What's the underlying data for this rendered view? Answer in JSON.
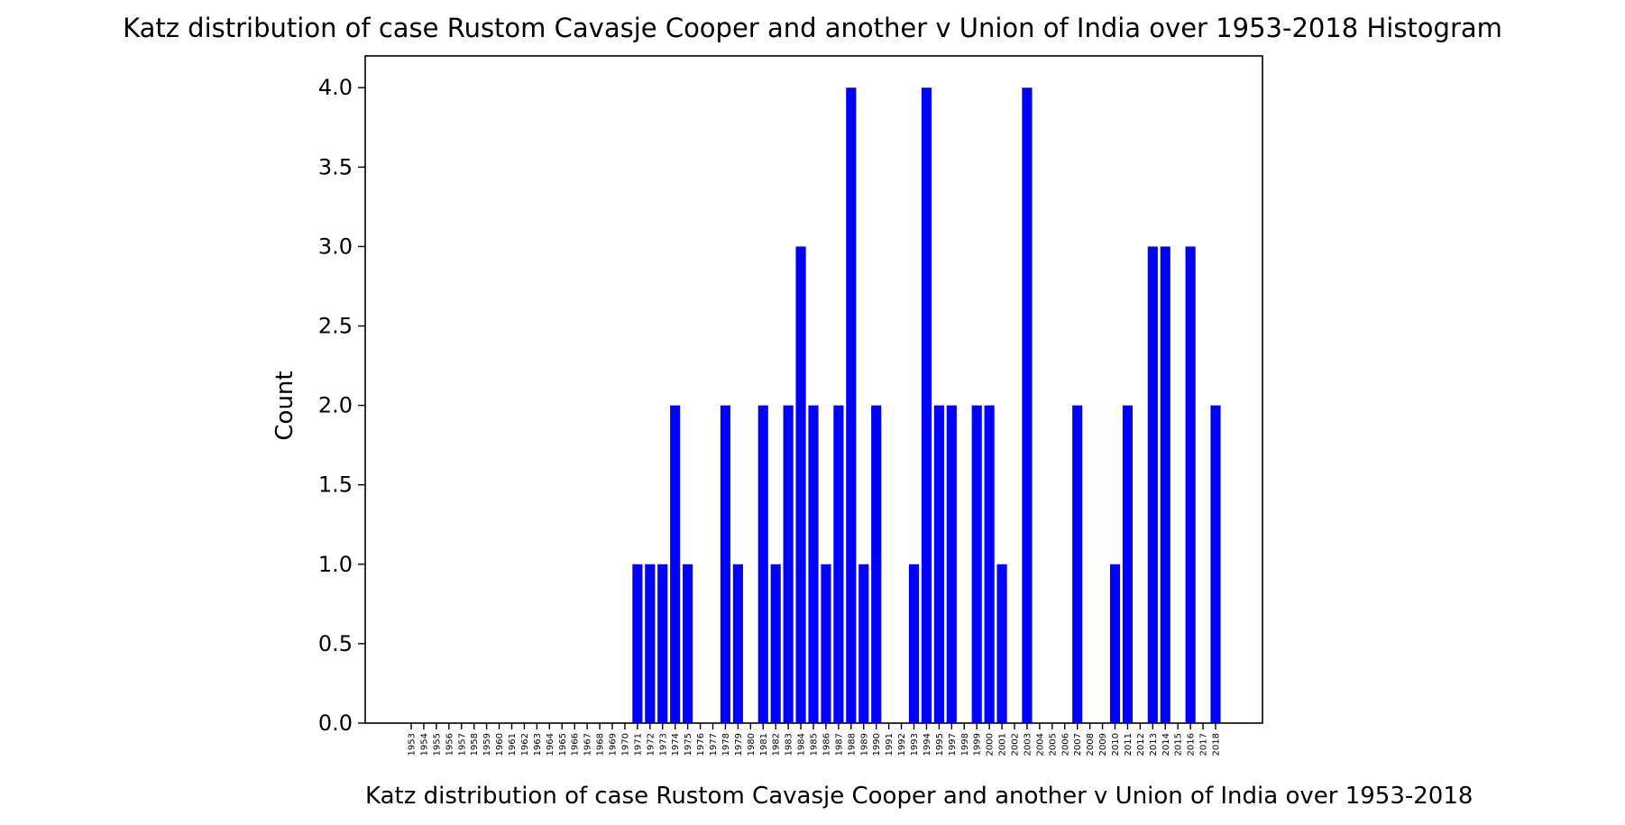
{
  "chart_data": {
    "type": "bar",
    "title": "Katz distribution of case Rustom Cavasje Cooper and another v Union of India over 1953-2018 Histogram",
    "xlabel": "Katz distribution of case Rustom Cavasje Cooper and another v Union of India over 1953-2018",
    "ylabel": "Count",
    "ylim": [
      0,
      4.2
    ],
    "yticks": [
      "0.0",
      "0.5",
      "1.0",
      "1.5",
      "2.0",
      "2.5",
      "3.0",
      "3.5",
      "4.0"
    ],
    "grid": false,
    "bar_color": "#0000ff",
    "categories": [
      "1953",
      "1954",
      "1955",
      "1956",
      "1957",
      "1958",
      "1959",
      "1960",
      "1961",
      "1962",
      "1963",
      "1964",
      "1965",
      "1966",
      "1967",
      "1968",
      "1969",
      "1970",
      "1971",
      "1972",
      "1973",
      "1974",
      "1975",
      "1976",
      "1977",
      "1978",
      "1979",
      "1980",
      "1981",
      "1982",
      "1983",
      "1984",
      "1985",
      "1986",
      "1987",
      "1988",
      "1989",
      "1990",
      "1991",
      "1992",
      "1993",
      "1994",
      "1995",
      "1997",
      "1998",
      "1999",
      "2000",
      "2001",
      "2002",
      "2003",
      "2004",
      "2005",
      "2006",
      "2007",
      "2008",
      "2009",
      "2010",
      "2011",
      "2012",
      "2013",
      "2014",
      "2015",
      "2016",
      "2017",
      "2018"
    ],
    "values": [
      0,
      0,
      0,
      0,
      0,
      0,
      0,
      0,
      0,
      0,
      0,
      0,
      0,
      0,
      0,
      0,
      0,
      0,
      1,
      1,
      1,
      2,
      1,
      0,
      0,
      2,
      1,
      0,
      2,
      1,
      2,
      3,
      2,
      1,
      2,
      4,
      1,
      2,
      0,
      0,
      1,
      4,
      2,
      2,
      0,
      2,
      2,
      1,
      0,
      4,
      0,
      0,
      0,
      2,
      0,
      0,
      1,
      2,
      0,
      3,
      3,
      0,
      3,
      0,
      2
    ]
  }
}
